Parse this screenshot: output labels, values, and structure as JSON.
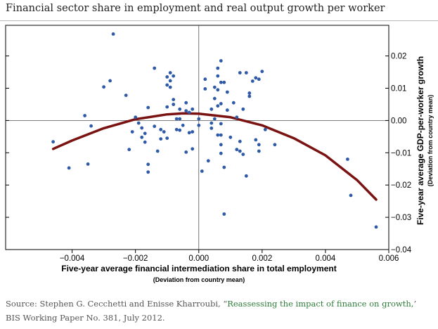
{
  "header": {
    "title": "Financial sector share in employment and real output growth per worker"
  },
  "source": {
    "prefix": "Source: Stephen G. Cecchetti and Enisse Kharroubi, “",
    "link_text": "Reassessing the impact of finance on growth,",
    "suffix": "’ BIS Working Paper No. 381, July 2012."
  },
  "colors": {
    "point": "#2f5aa8",
    "curve": "#7a1212",
    "axis": "#000000",
    "grid": "#cccccc"
  },
  "chart_data": {
    "type": "scatter",
    "title": "Financial sector share in employment and real output growth per worker",
    "xlabel": "Five-year average financial intermediation share in total employment",
    "xlabel_sub": "(Deviation from country mean)",
    "ylabel": "Five-year average GDP-per-worker growth",
    "ylabel_sub": "(Deviation from country mean)",
    "xlim": [
      -0.0061,
      0.006
    ],
    "ylim": [
      -0.04,
      0.0295
    ],
    "x_ticks": [
      -0.004,
      -0.002,
      0.0,
      0.002,
      0.004,
      0.006
    ],
    "x_tick_labels": [
      "−0.004",
      "−0.002",
      "0.000",
      "0.002",
      "0.004",
      "0.006"
    ],
    "y_ticks": [
      0.02,
      0.01,
      0.0,
      -0.01,
      -0.02,
      -0.03,
      -0.04
    ],
    "y_tick_labels": [
      "0.02",
      "0.01",
      "0.00",
      "−0.01",
      "−0.02",
      "−0.03",
      "−0.04"
    ],
    "grid": false,
    "fit": {
      "name": "quadratic fit",
      "x": [
        -0.0046,
        -0.004,
        -0.003,
        -0.002,
        -0.001,
        -0.0005,
        0.0,
        0.001,
        0.002,
        0.003,
        0.004,
        0.005,
        0.0056
      ],
      "y": [
        -0.0088,
        -0.0062,
        -0.0024,
        0.0004,
        0.0019,
        0.0022,
        0.0021,
        0.001,
        -0.0015,
        -0.0055,
        -0.0108,
        -0.0185,
        -0.0245
      ]
    },
    "points": [
      {
        "x": -0.0046,
        "y": -0.0066
      },
      {
        "x": -0.0041,
        "y": -0.0147
      },
      {
        "x": -0.0036,
        "y": 0.0015
      },
      {
        "x": -0.0035,
        "y": -0.0135
      },
      {
        "x": -0.0034,
        "y": -0.0017
      },
      {
        "x": -0.003,
        "y": 0.0104
      },
      {
        "x": -0.0028,
        "y": 0.0123
      },
      {
        "x": -0.0027,
        "y": 0.0268
      },
      {
        "x": -0.0023,
        "y": 0.0078
      },
      {
        "x": -0.0022,
        "y": -0.009
      },
      {
        "x": -0.0021,
        "y": -0.0035
      },
      {
        "x": -0.002,
        "y": 0.001
      },
      {
        "x": -0.0019,
        "y": -0.0008
      },
      {
        "x": -0.0018,
        "y": -0.0023
      },
      {
        "x": -0.0018,
        "y": -0.0052
      },
      {
        "x": -0.0017,
        "y": -0.0067
      },
      {
        "x": -0.0017,
        "y": -0.004
      },
      {
        "x": -0.0016,
        "y": -0.0136
      },
      {
        "x": -0.0016,
        "y": -0.016
      },
      {
        "x": -0.0016,
        "y": 0.004
      },
      {
        "x": -0.0014,
        "y": 0.0162
      },
      {
        "x": -0.0014,
        "y": -0.0018
      },
      {
        "x": -0.0013,
        "y": -0.0095
      },
      {
        "x": -0.0012,
        "y": -0.0057
      },
      {
        "x": -0.0012,
        "y": -0.0028
      },
      {
        "x": -0.0011,
        "y": -0.0035
      },
      {
        "x": -0.001,
        "y": 0.0042
      },
      {
        "x": -0.001,
        "y": 0.011
      },
      {
        "x": -0.001,
        "y": -0.0055
      },
      {
        "x": -0.001,
        "y": 0.0135
      },
      {
        "x": -0.0009,
        "y": 0.0103
      },
      {
        "x": -0.0009,
        "y": 0.0148
      },
      {
        "x": -0.0009,
        "y": 0.0123
      },
      {
        "x": -0.0008,
        "y": 0.0138
      },
      {
        "x": -0.0008,
        "y": 0.005
      },
      {
        "x": -0.0008,
        "y": 0.0065
      },
      {
        "x": -0.0007,
        "y": 0.0005
      },
      {
        "x": -0.0007,
        "y": -0.0028
      },
      {
        "x": -0.0006,
        "y": 0.0005
      },
      {
        "x": -0.0006,
        "y": 0.0035
      },
      {
        "x": -0.0006,
        "y": -0.003
      },
      {
        "x": -0.0005,
        "y": -0.0015
      },
      {
        "x": -0.0004,
        "y": 0.0055
      },
      {
        "x": -0.0004,
        "y": 0.003
      },
      {
        "x": -0.0004,
        "y": -0.0098
      },
      {
        "x": -0.0003,
        "y": -0.0038
      },
      {
        "x": -0.0003,
        "y": 0.0025
      },
      {
        "x": -0.0002,
        "y": -0.0088
      },
      {
        "x": -0.0002,
        "y": -0.0035
      },
      {
        "x": -0.0002,
        "y": 0.0035
      },
      {
        "x": 0.0,
        "y": -0.0015
      },
      {
        "x": 0.0,
        "y": 0.0005
      },
      {
        "x": 0.0001,
        "y": -0.0157
      },
      {
        "x": 0.0002,
        "y": 0.0128
      },
      {
        "x": 0.0002,
        "y": 0.0098
      },
      {
        "x": 0.0003,
        "y": -0.0125
      },
      {
        "x": 0.0004,
        "y": 0.0035
      },
      {
        "x": 0.0004,
        "y": -0.0024
      },
      {
        "x": 0.0004,
        "y": -0.0008
      },
      {
        "x": 0.0005,
        "y": 0.0068
      },
      {
        "x": 0.0005,
        "y": 0.0103
      },
      {
        "x": 0.0005,
        "y": 0.0005
      },
      {
        "x": 0.0006,
        "y": 0.0138
      },
      {
        "x": 0.0006,
        "y": 0.0095
      },
      {
        "x": 0.0006,
        "y": -0.0045
      },
      {
        "x": 0.0006,
        "y": 0.0162
      },
      {
        "x": 0.0006,
        "y": 0.0045
      },
      {
        "x": 0.0007,
        "y": 0.0185
      },
      {
        "x": 0.0007,
        "y": 0.0118
      },
      {
        "x": 0.0007,
        "y": 0.0052
      },
      {
        "x": 0.0007,
        "y": -0.001
      },
      {
        "x": 0.0007,
        "y": -0.0045
      },
      {
        "x": 0.0007,
        "y": -0.0075
      },
      {
        "x": 0.0007,
        "y": -0.0102
      },
      {
        "x": 0.0008,
        "y": -0.0145
      },
      {
        "x": 0.0008,
        "y": -0.029
      },
      {
        "x": 0.0008,
        "y": 0.0118
      },
      {
        "x": 0.0009,
        "y": 0.0088
      },
      {
        "x": 0.0009,
        "y": 0.0032
      },
      {
        "x": 0.001,
        "y": -0.0052
      },
      {
        "x": 0.0011,
        "y": 0.0055
      },
      {
        "x": 0.0012,
        "y": 0.001
      },
      {
        "x": 0.0012,
        "y": -0.009
      },
      {
        "x": 0.0013,
        "y": 0.0148
      },
      {
        "x": 0.0013,
        "y": -0.0095
      },
      {
        "x": 0.0013,
        "y": -0.0065
      },
      {
        "x": 0.0014,
        "y": 0.0035
      },
      {
        "x": 0.0014,
        "y": -0.0105
      },
      {
        "x": 0.0015,
        "y": -0.0172
      },
      {
        "x": 0.0015,
        "y": 0.0148
      },
      {
        "x": 0.0016,
        "y": 0.0085
      },
      {
        "x": 0.0016,
        "y": 0.0075
      },
      {
        "x": 0.0017,
        "y": 0.0122
      },
      {
        "x": 0.0018,
        "y": 0.0132
      },
      {
        "x": 0.0018,
        "y": -0.006
      },
      {
        "x": 0.0019,
        "y": -0.0095
      },
      {
        "x": 0.0019,
        "y": -0.0075
      },
      {
        "x": 0.0019,
        "y": 0.0128
      },
      {
        "x": 0.002,
        "y": 0.0152
      },
      {
        "x": 0.0021,
        "y": -0.0028
      },
      {
        "x": 0.0024,
        "y": -0.0075
      },
      {
        "x": 0.0047,
        "y": -0.012
      },
      {
        "x": 0.0048,
        "y": -0.0232
      },
      {
        "x": 0.0056,
        "y": -0.033
      }
    ]
  }
}
